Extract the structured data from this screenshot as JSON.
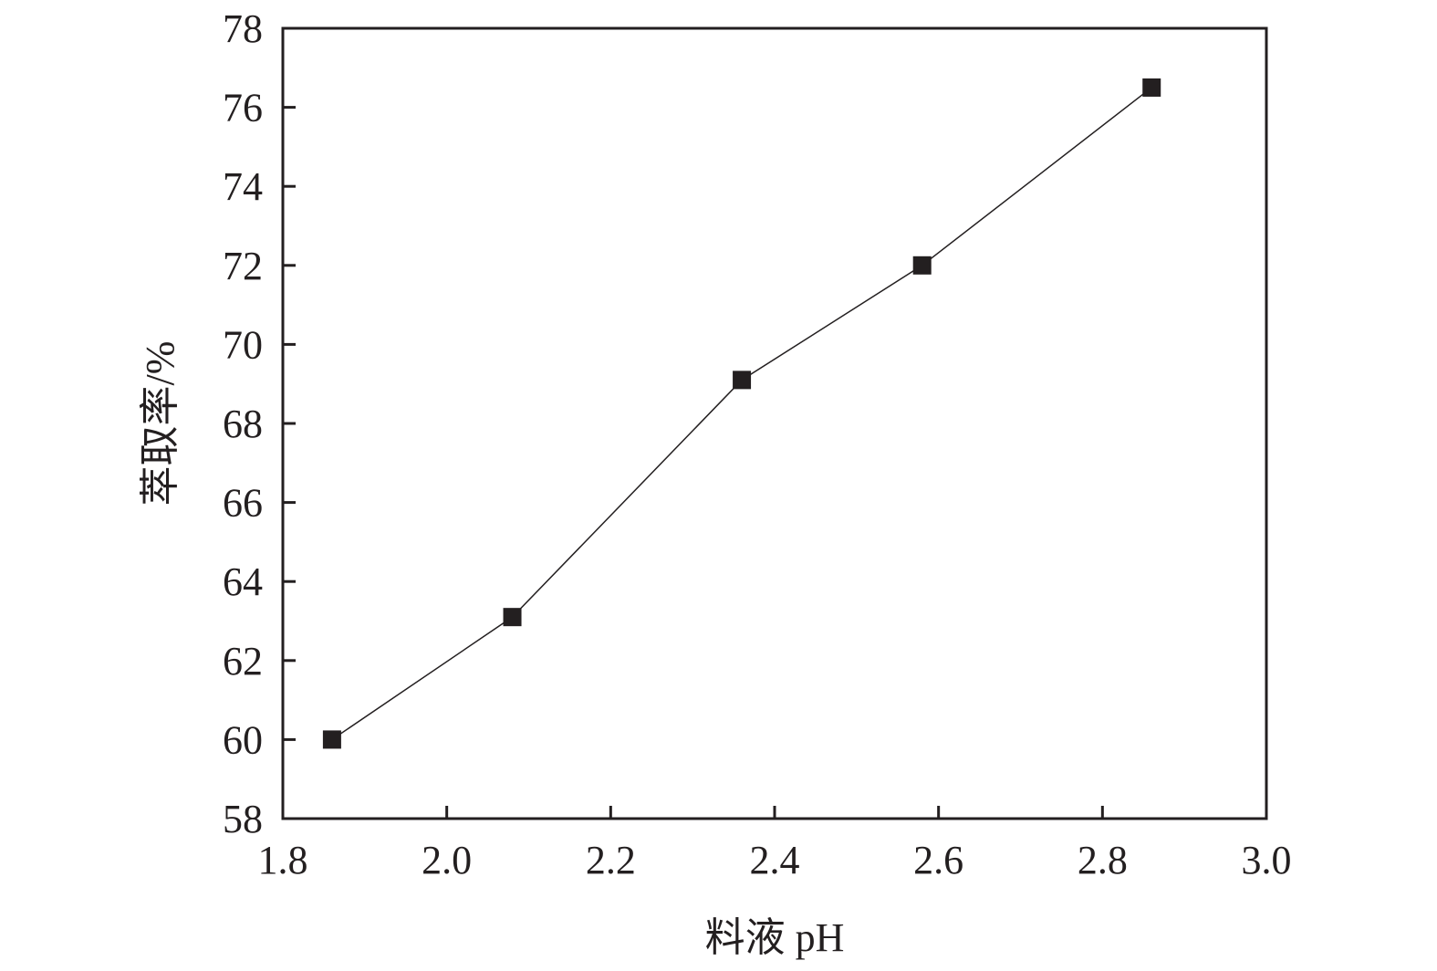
{
  "chart_data": {
    "type": "line",
    "title": "",
    "xlabel": "料液 pH",
    "ylabel": "萃取率/%",
    "xlim": [
      1.8,
      3.0
    ],
    "ylim": [
      58,
      78
    ],
    "xticks": [
      "1.8",
      "2.0",
      "2.2",
      "2.4",
      "2.6",
      "2.8",
      "3.0"
    ],
    "yticks": [
      "58",
      "60",
      "62",
      "64",
      "66",
      "68",
      "70",
      "72",
      "74",
      "76",
      "78"
    ],
    "grid": false,
    "marker": "square",
    "color": "#231f20",
    "series": [
      {
        "x": [
          1.86,
          2.08,
          2.36,
          2.58,
          2.86
        ],
        "y": [
          60.0,
          63.1,
          69.1,
          72.0,
          76.5
        ]
      }
    ]
  }
}
